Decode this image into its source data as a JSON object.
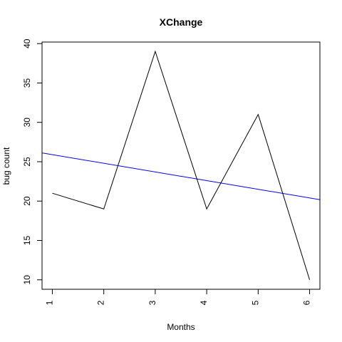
{
  "chart_data": {
    "type": "line",
    "title": "XChange",
    "xlabel": "Months",
    "ylabel": "bug count",
    "x": [
      1,
      2,
      3,
      4,
      5,
      6
    ],
    "xlim": [
      0.8,
      6.2
    ],
    "ylim": [
      8.8,
      40.2
    ],
    "x_ticks": [
      "1",
      "2",
      "3",
      "4",
      "5",
      "6"
    ],
    "y_ticks": [
      "10",
      "15",
      "20",
      "25",
      "30",
      "35",
      "40"
    ],
    "grid": false,
    "series": [
      {
        "values": [
          21,
          19,
          39,
          19,
          31,
          10
        ],
        "color": "#000000"
      }
    ],
    "trend_line": {
      "intercept": 27.0,
      "slope": -1.1,
      "color": "#0000ff"
    }
  }
}
